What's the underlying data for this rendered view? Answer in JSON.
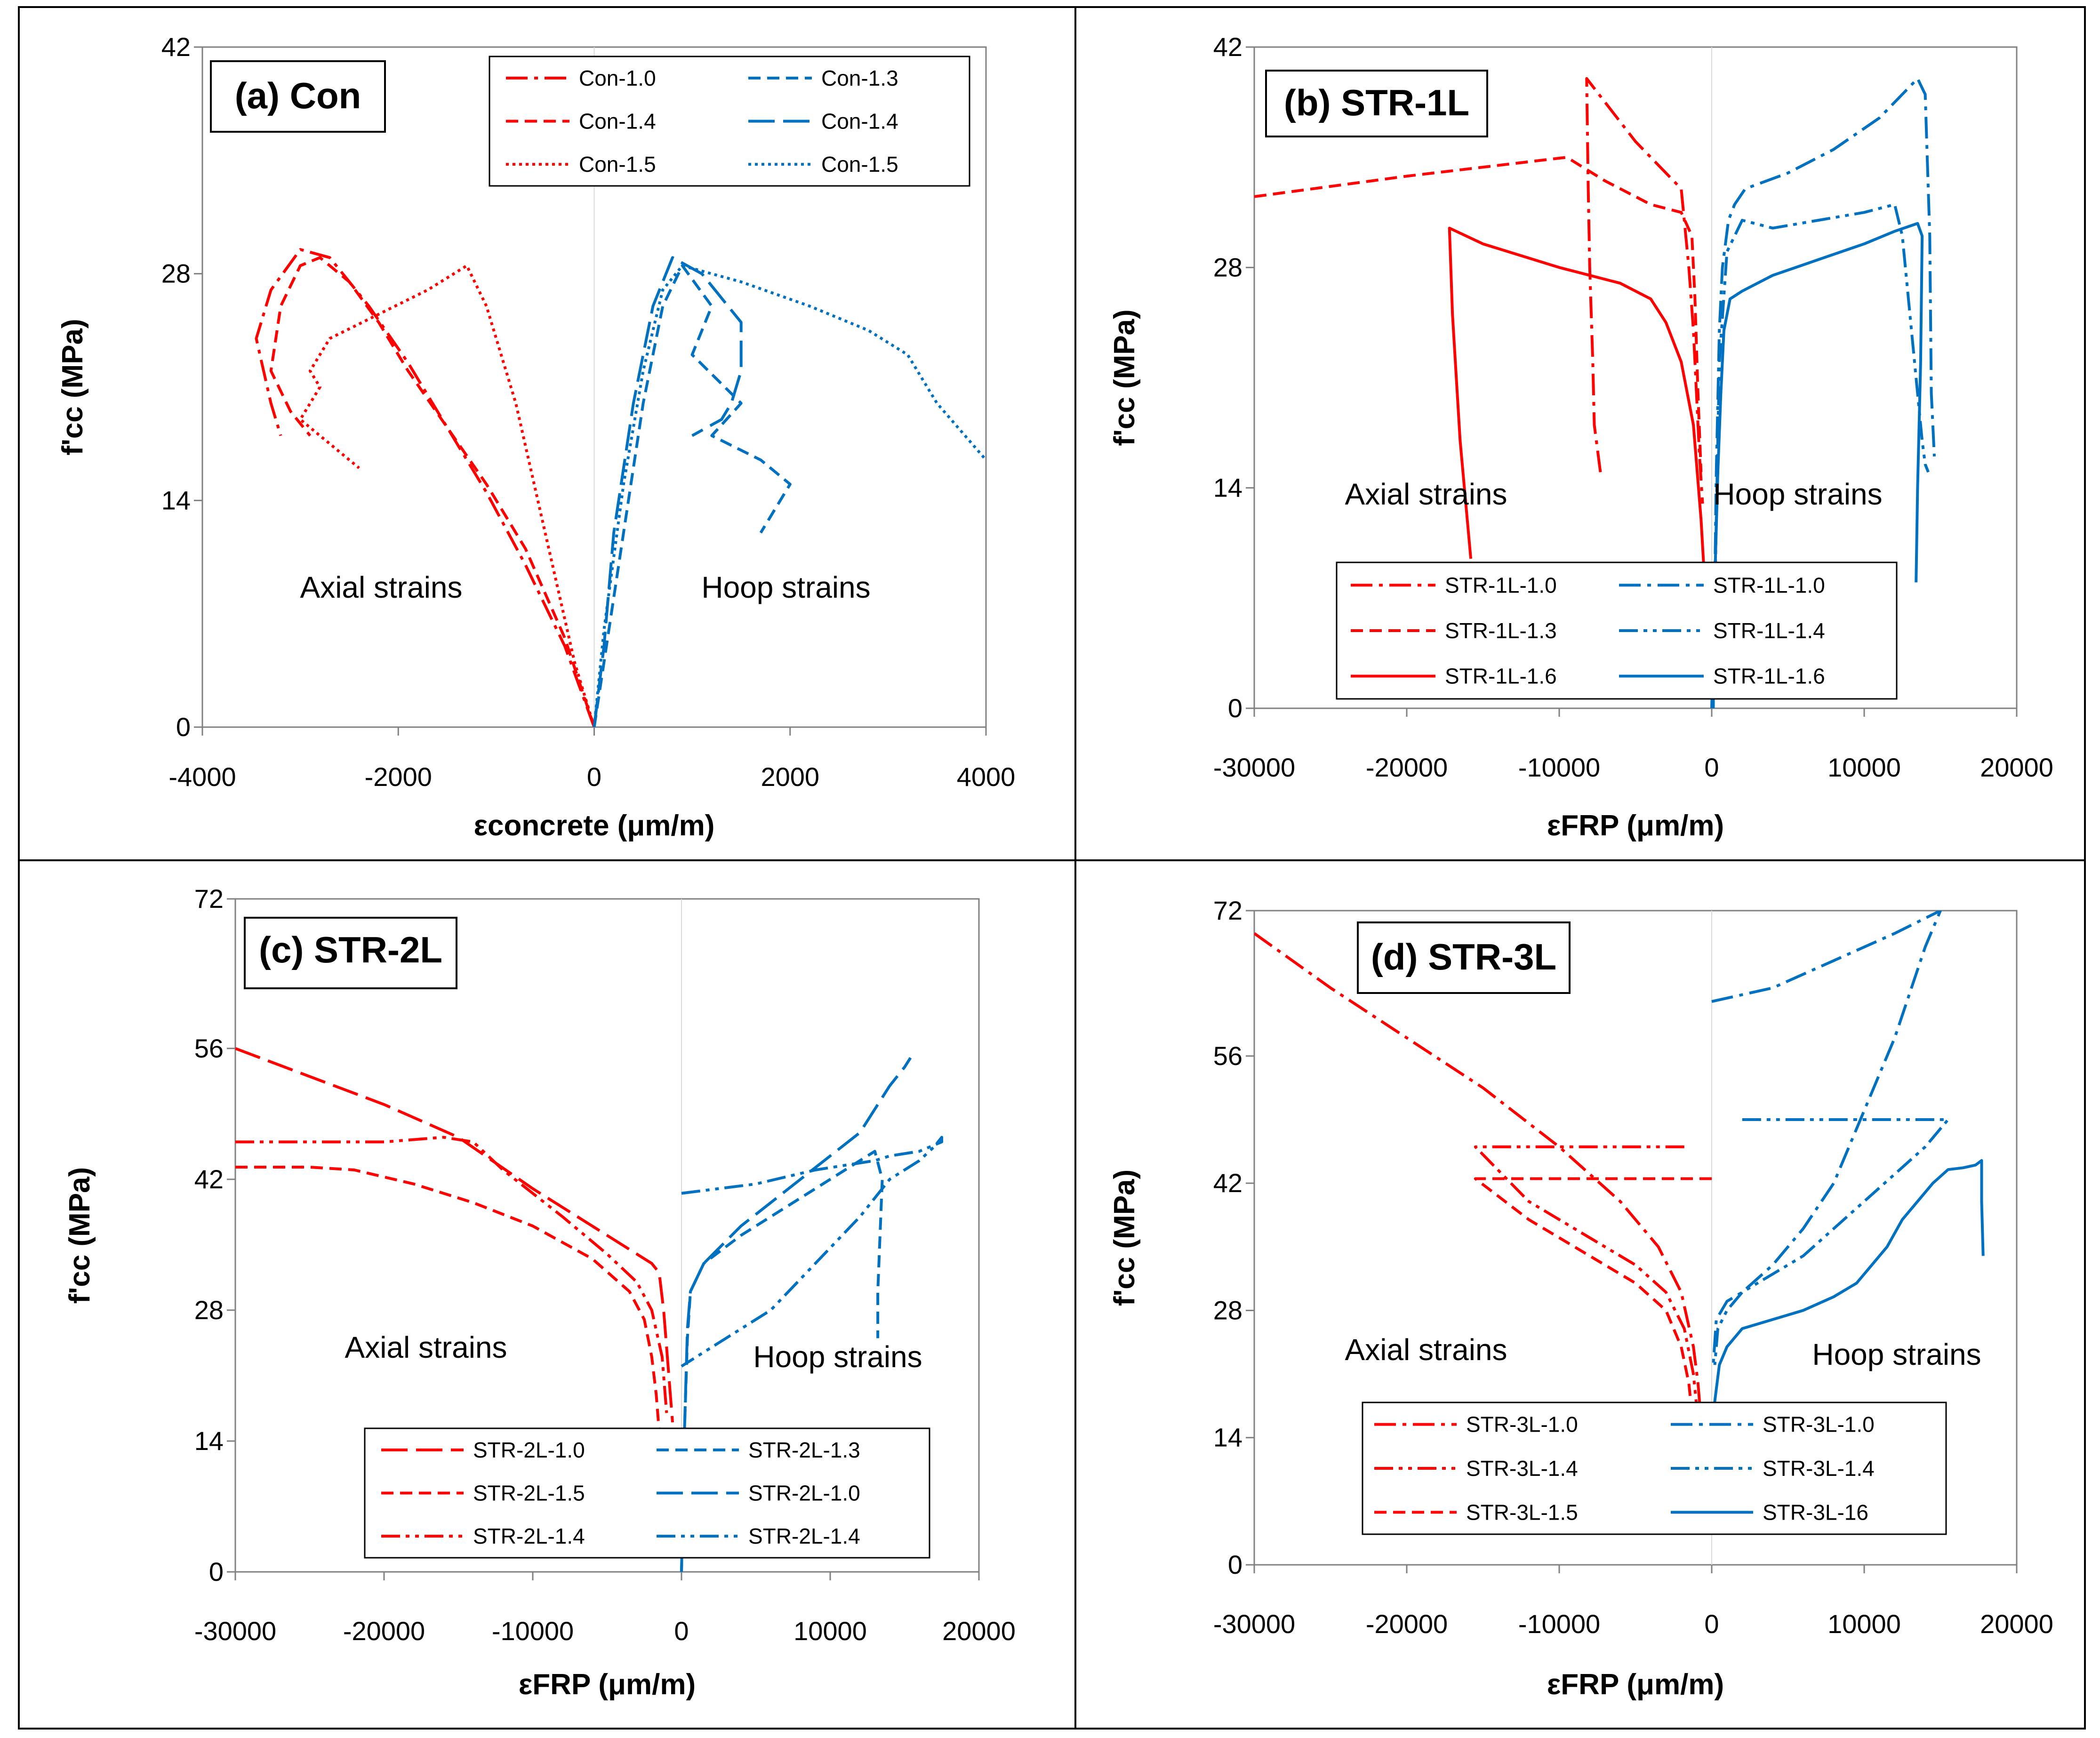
{
  "colors": {
    "red": "#ff0000",
    "blue": "#0070c0",
    "axis": "#808080",
    "frame": "#000000"
  },
  "chart_data": [
    {
      "type": "line",
      "title": "(a) Con",
      "ylabel": "f'cc (MPa)",
      "xlabel": "εconcrete (μm/m)",
      "xlim": [
        -4000,
        4000
      ],
      "ylim": [
        0,
        42
      ],
      "xticks": [
        "-4000",
        "-2000",
        "0",
        "2000",
        "4000"
      ],
      "yticks": [
        "0",
        "14",
        "28",
        "42"
      ],
      "annotations": [
        "Axial strains",
        "Hoop strains"
      ],
      "series": [
        {
          "name": "Con-1.0",
          "color": "red",
          "dash": "dashdot",
          "x": [
            0,
            -300,
            -700,
            -1100,
            -1500,
            -1900,
            -2300,
            -2700,
            -3000,
            -3300,
            -3450,
            -3300,
            -3200
          ],
          "y": [
            0,
            5,
            10,
            14.5,
            18.5,
            22.5,
            26,
            29,
            29.5,
            27,
            24,
            20,
            18
          ]
        },
        {
          "name": "Con-1.4",
          "color": "red",
          "dash": "dash",
          "x": [
            0,
            -300,
            -700,
            -1100,
            -1500,
            -1900,
            -2200,
            -2500,
            -2800,
            -3000,
            -3200,
            -3300,
            -3100,
            -2900
          ],
          "y": [
            0,
            5.5,
            11,
            15,
            18.5,
            22,
            25,
            27.5,
            29,
            28.5,
            26,
            22,
            19.5,
            18
          ]
        },
        {
          "name": "Con-1.5",
          "color": "red",
          "dash": "dot",
          "x": [
            0,
            -200,
            -500,
            -800,
            -1100,
            -1300,
            -1700,
            -2200,
            -2700,
            -2900,
            -2800,
            -3000,
            -2600,
            -2400
          ],
          "y": [
            0,
            4,
            12,
            20,
            26,
            28.5,
            27,
            25.5,
            24,
            22,
            21,
            19,
            17,
            16
          ]
        },
        {
          "name": "Con-1.3",
          "color": "blue",
          "dash": "dash",
          "x": [
            0,
            100,
            300,
            500,
            700,
            900,
            1200,
            1000,
            1500,
            1200,
            1700,
            2000,
            1700
          ],
          "y": [
            0,
            4,
            12,
            20,
            26,
            28.5,
            26,
            23,
            20,
            18,
            16.5,
            15,
            12
          ]
        },
        {
          "name": "Con-1.4",
          "color": "blue",
          "dash": "longdash",
          "x": [
            0,
            100,
            200,
            400,
            600,
            800,
            1100,
            1500,
            1500,
            1400,
            1300,
            1000
          ],
          "y": [
            0,
            5,
            12,
            20,
            26,
            29,
            28,
            25,
            22,
            20,
            19,
            18
          ]
        },
        {
          "name": "Con-1.5",
          "color": "blue",
          "dash": "dot",
          "x": [
            0,
            100,
            300,
            500,
            700,
            900,
            1500,
            2200,
            2800,
            3200,
            3500,
            4000
          ],
          "y": [
            0,
            6,
            15,
            22,
            27,
            28.5,
            27.5,
            26,
            24.5,
            23,
            20,
            16.5
          ]
        }
      ]
    },
    {
      "type": "line",
      "title": "(b) STR-1L",
      "ylabel": "f'cc (MPa)",
      "xlabel": "εFRP (μm/m)",
      "xlim": [
        -30000,
        20000
      ],
      "ylim": [
        0,
        42
      ],
      "xticks": [
        "-30000",
        "-20000",
        "-10000",
        "0",
        "10000",
        "20000"
      ],
      "yticks": [
        "0",
        "14",
        "28",
        "42"
      ],
      "annotations": [
        "Axial strains",
        "Hoop strains"
      ],
      "series": [
        {
          "name": "STR-1L-1.0",
          "color": "red",
          "dash": "dashdot",
          "x": [
            -7300,
            -7700,
            -7800,
            -8000,
            -8100,
            -8200,
            -5000,
            -2000,
            -1500,
            -1200,
            -1000,
            -800,
            -600
          ],
          "y": [
            15,
            18,
            22,
            28,
            33,
            40,
            36,
            33,
            28,
            24,
            20,
            16,
            13
          ]
        },
        {
          "name": "STR-1L-1.3",
          "color": "red",
          "dash": "dash",
          "x": [
            -30000,
            -20000,
            -9500,
            -7000,
            -4000,
            -2000,
            -1300,
            -1100,
            -900,
            -700
          ],
          "y": [
            32.5,
            33.8,
            35,
            33.5,
            32,
            31.5,
            30,
            26,
            20,
            15
          ]
        },
        {
          "name": "STR-1L-1.6",
          "color": "red",
          "dash": "solid",
          "x": [
            -15800,
            -16500,
            -17000,
            -17200,
            -15000,
            -10000,
            -6000,
            -4000,
            -3000,
            -2000,
            -1200,
            -700,
            -400
          ],
          "y": [
            9.5,
            17,
            25,
            30.5,
            29.5,
            28,
            27,
            26,
            24.5,
            22,
            18,
            12,
            7
          ]
        },
        {
          "name": "STR-1L-1.0",
          "color": "blue",
          "dash": "dashdot",
          "x": [
            100,
            300,
            500,
            700,
            1100,
            1500,
            2200,
            5000,
            8000,
            11000,
            13500,
            14000,
            14300,
            14400,
            14600
          ],
          "y": [
            0,
            15,
            24,
            28,
            31,
            32,
            33,
            34,
            35.5,
            37.5,
            40,
            39,
            30,
            20,
            16
          ]
        },
        {
          "name": "STR-1L-1.4",
          "color": "blue",
          "dash": "dashdotdot",
          "x": [
            100,
            300,
            500,
            1000,
            2000,
            4000,
            7000,
            10000,
            12000,
            12500,
            13000,
            13500,
            13800,
            14000,
            14200
          ],
          "y": [
            0,
            12,
            22,
            29,
            31,
            30.5,
            31,
            31.5,
            32,
            30,
            25,
            20,
            17,
            15.5,
            15
          ]
        },
        {
          "name": "STR-1L-1.6",
          "color": "blue",
          "dash": "solid",
          "x": [
            0,
            200,
            400,
            600,
            800,
            1200,
            2000,
            4000,
            7000,
            10000,
            12000,
            13500,
            13800,
            13700,
            13500,
            13400
          ],
          "y": [
            0,
            8,
            15,
            20,
            24,
            26,
            26.5,
            27.5,
            28.5,
            29.5,
            30.3,
            30.8,
            30,
            22,
            14,
            8
          ]
        }
      ]
    },
    {
      "type": "line",
      "title": "(c) STR-2L",
      "ylabel": "f'cc (MPa)",
      "xlabel": "εFRP (μm/m)",
      "xlim": [
        -30000,
        20000
      ],
      "ylim": [
        0,
        72
      ],
      "xticks": [
        "-30000",
        "-20000",
        "-10000",
        "0",
        "10000",
        "20000"
      ],
      "yticks": [
        "0",
        "14",
        "28",
        "42",
        "56",
        "72"
      ],
      "annotations": [
        "Axial strains",
        "Hoop strains"
      ],
      "series": [
        {
          "name": "STR-2L-1.0",
          "color": "red",
          "dash": "longdash",
          "x": [
            -30000,
            -25000,
            -20000,
            -15000,
            -10000,
            -5000,
            -2000,
            -1500,
            -1200,
            -1000,
            -800,
            -600
          ],
          "y": [
            56,
            53,
            50,
            46.5,
            41,
            36,
            33,
            32,
            28,
            24,
            20,
            16
          ]
        },
        {
          "name": "STR-2L-1.5",
          "color": "red",
          "dash": "dash",
          "x": [
            -30000,
            -25000,
            -22000,
            -18000,
            -14000,
            -10000,
            -6000,
            -3500,
            -2500,
            -2000,
            -1700,
            -1500
          ],
          "y": [
            43.3,
            43.3,
            43,
            41.5,
            39.5,
            37,
            33.5,
            30,
            27,
            23,
            19,
            15
          ]
        },
        {
          "name": "STR-2L-1.4",
          "color": "red",
          "dash": "dashdotdot",
          "x": [
            -30000,
            -20000,
            -16000,
            -14000,
            -12000,
            -8000,
            -5000,
            -3000,
            -2000,
            -1300,
            -1000
          ],
          "y": [
            46,
            46,
            46.5,
            46,
            43,
            38,
            34,
            31,
            28,
            23,
            17
          ]
        },
        {
          "name": "STR-2L-1.3",
          "color": "blue",
          "dash": "dash",
          "x": [
            0,
            200,
            400,
            600,
            1500,
            4000,
            8000,
            12000,
            13000,
            13500,
            13200,
            13200
          ],
          "y": [
            0,
            15,
            25,
            30,
            33,
            36,
            40,
            44,
            45,
            42,
            30,
            25
          ]
        },
        {
          "name": "STR-2L-1.0",
          "color": "blue",
          "dash": "longdash",
          "x": [
            0,
            200,
            400,
            600,
            1500,
            4000,
            8000,
            12000,
            14000,
            15000,
            15400
          ],
          "y": [
            0,
            15,
            26,
            30,
            33,
            37,
            42,
            47,
            52,
            54,
            55
          ]
        },
        {
          "name": "STR-2L-1.4",
          "color": "blue",
          "dash": "dashdotdot",
          "x": [
            0,
            5000,
            9000,
            13000,
            14000,
            16000,
            17500,
            17500,
            17000,
            16000,
            14000,
            12000,
            9000,
            6000,
            2000,
            0
          ],
          "y": [
            40.5,
            41.5,
            43,
            44,
            44.5,
            45,
            46,
            46.5,
            45.5,
            44,
            42,
            38,
            33,
            28,
            24,
            22
          ]
        }
      ]
    },
    {
      "type": "line",
      "title": "(d) STR-3L",
      "ylabel": "f'cc (MPa)",
      "xlabel": "εFRP (μm/m)",
      "xlim": [
        -30000,
        20000
      ],
      "ylim": [
        0,
        72
      ],
      "xticks": [
        "-30000",
        "-20000",
        "-10000",
        "0",
        "10000",
        "20000"
      ],
      "yticks": [
        "0",
        "14",
        "28",
        "42",
        "56",
        "72"
      ],
      "annotations": [
        "Axial strains",
        "Hoop strains"
      ],
      "series": [
        {
          "name": "STR-3L-1.0",
          "color": "red",
          "dash": "dashdot",
          "x": [
            -30000,
            -25000,
            -20000,
            -15000,
            -10000,
            -6000,
            -3500,
            -2000,
            -1200,
            -900,
            -700
          ],
          "y": [
            69.5,
            63.5,
            58,
            52.5,
            46,
            40,
            35,
            30,
            24,
            20,
            16
          ]
        },
        {
          "name": "STR-3L-1.4",
          "color": "red",
          "dash": "dashdotdot",
          "x": [
            -1800,
            -8000,
            -15500,
            -12000,
            -8000,
            -5000,
            -3000,
            -1800,
            -1200,
            -900
          ],
          "y": [
            46,
            46,
            46,
            40,
            36,
            33,
            30,
            26,
            21,
            16
          ]
        },
        {
          "name": "STR-3L-1.5",
          "color": "red",
          "dash": "dash",
          "x": [
            0,
            -8000,
            -15500,
            -12000,
            -8000,
            -5000,
            -3000,
            -2000,
            -1500,
            -1200
          ],
          "y": [
            42.5,
            42.5,
            42.5,
            38,
            34,
            31,
            28,
            24,
            20,
            15
          ]
        },
        {
          "name": "STR-3L-1.0",
          "color": "blue",
          "dash": "dashdot",
          "x": [
            0,
            4000,
            8000,
            12000,
            15000,
            14000,
            12000,
            10000,
            8000,
            6000,
            4000,
            2000,
            1000,
            300,
            100
          ],
          "y": [
            62,
            63.5,
            66.5,
            69.5,
            72,
            68,
            58,
            50,
            42,
            37,
            33,
            30,
            29,
            27,
            22
          ]
        },
        {
          "name": "STR-3L-1.4",
          "color": "blue",
          "dash": "dashdotdot",
          "x": [
            2000,
            8000,
            15500,
            14000,
            12000,
            10000,
            8000,
            6000,
            4000,
            2000,
            1000,
            400,
            200
          ],
          "y": [
            49,
            49,
            49,
            46,
            43,
            40,
            37,
            34,
            32,
            30,
            28,
            26,
            22
          ]
        },
        {
          "name": "STR-3L-16",
          "color": "blue",
          "dash": "solid",
          "x": [
            0,
            200,
            500,
            1000,
            2000,
            4000,
            6000,
            8000,
            9500,
            10500,
            11500,
            12500,
            13500,
            14500,
            15500,
            16500,
            17300,
            17700,
            17700,
            17800
          ],
          "y": [
            14,
            18,
            22,
            24,
            26,
            27,
            28,
            29.5,
            31,
            33,
            35,
            38,
            40,
            42,
            43.5,
            43.7,
            44,
            44.5,
            40,
            34
          ]
        }
      ]
    }
  ]
}
